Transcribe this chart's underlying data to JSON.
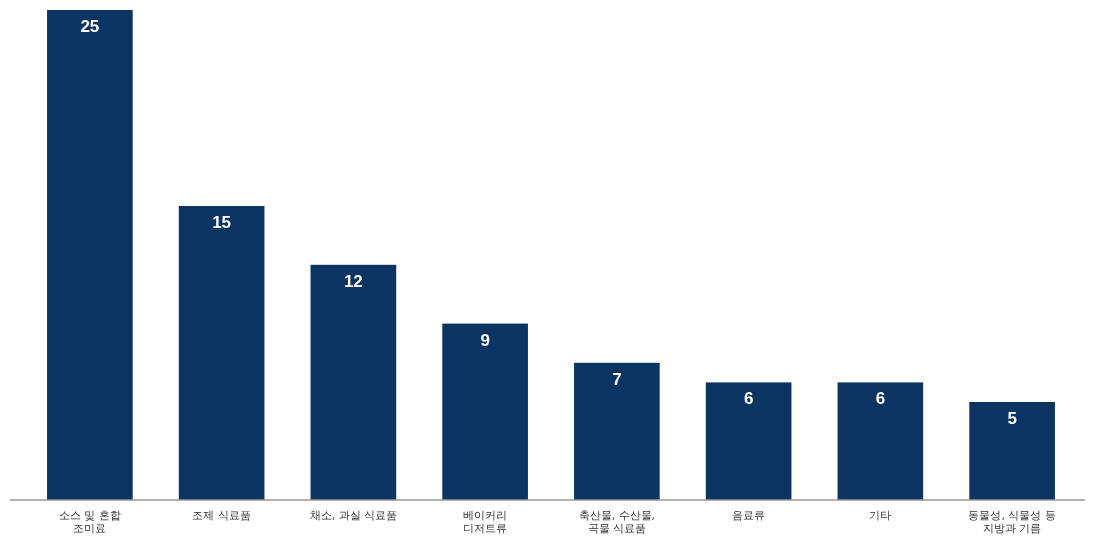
{
  "chart_data": {
    "type": "bar",
    "categories": [
      "소스 및 혼합\n조미료",
      "조제 식료품",
      "채소, 과실 식료품",
      "베이커리\n디저트류",
      "축산물, 수산물,\n곡물 식료품",
      "음료류",
      "기타",
      "동물성, 식물성 등\n지방과 기름"
    ],
    "values": [
      25,
      15,
      12,
      9,
      7,
      6,
      6,
      5
    ],
    "color": "#0b3463",
    "data_labels": true
  }
}
